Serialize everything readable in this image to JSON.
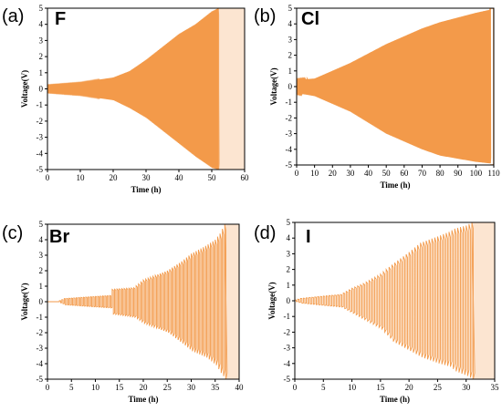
{
  "colors": {
    "series": "#f39a4a",
    "fill": "#f7b57a",
    "axis": "#000000"
  },
  "chart_data": [
    {
      "type": "line",
      "panel_label": "(a)",
      "title": "F",
      "xlabel": "Time (h)",
      "ylabel": "Voltage(V)",
      "xlim": [
        0,
        60
      ],
      "ylim": [
        -5,
        5
      ],
      "xticks": [
        0,
        10,
        20,
        30,
        40,
        50,
        60
      ],
      "yticks": [
        -5,
        -4,
        -3,
        -2,
        -1,
        0,
        1,
        2,
        3,
        4,
        5
      ],
      "cycle_period_h": 0.25,
      "envelope_x": [
        0,
        10,
        20,
        25,
        30,
        35,
        40,
        45,
        50,
        52
      ],
      "envelope_upper": [
        0.25,
        0.4,
        0.7,
        1.1,
        1.8,
        2.6,
        3.4,
        4.0,
        4.8,
        5
      ],
      "envelope_lower": [
        -0.25,
        -0.4,
        -0.7,
        -1.2,
        -1.8,
        -2.6,
        -3.4,
        -4.2,
        -4.9,
        -5
      ]
    },
    {
      "type": "line",
      "panel_label": "(b)",
      "title": "Cl",
      "xlabel": "Time (h)",
      "ylabel": "Voltage(V)",
      "xlim": [
        0,
        110
      ],
      "ylim": [
        -5,
        5
      ],
      "xticks": [
        0,
        10,
        20,
        30,
        40,
        50,
        60,
        70,
        80,
        90,
        100,
        110
      ],
      "yticks": [
        -5,
        -4,
        -3,
        -2,
        -1,
        0,
        1,
        2,
        3,
        4,
        5
      ],
      "cycle_period_h": 0.35,
      "envelope_x": [
        0,
        10,
        20,
        30,
        40,
        50,
        60,
        70,
        80,
        90,
        100,
        108
      ],
      "envelope_upper": [
        0.4,
        0.5,
        1.0,
        1.5,
        2.1,
        2.7,
        3.2,
        3.7,
        4.1,
        4.4,
        4.7,
        4.9
      ],
      "envelope_lower": [
        -0.4,
        -0.6,
        -1.1,
        -1.6,
        -2.3,
        -3.0,
        -3.5,
        -4.0,
        -4.4,
        -4.6,
        -4.8,
        -4.9
      ]
    },
    {
      "type": "line",
      "panel_label": "(c)",
      "title": "Br",
      "xlabel": "Time (h)",
      "ylabel": "Voltage(V)",
      "xlim": [
        0,
        40
      ],
      "ylim": [
        -5,
        5
      ],
      "xticks": [
        0,
        5,
        10,
        15,
        20,
        25,
        30,
        35,
        40
      ],
      "yticks": [
        -5,
        -4,
        -3,
        -2,
        -1,
        0,
        1,
        2,
        3,
        4,
        5
      ],
      "cycle_period_h": 0.5,
      "envelope_x": [
        0,
        2,
        3.5,
        8,
        13,
        13.5,
        18,
        20,
        25,
        28,
        30,
        33,
        35,
        36,
        37
      ],
      "envelope_upper": [
        0,
        0,
        0.2,
        0.3,
        0.4,
        0.8,
        0.9,
        1.4,
        2.0,
        2.6,
        3.1,
        3.6,
        4.0,
        4.4,
        5
      ],
      "envelope_lower": [
        0,
        0,
        -0.2,
        -0.3,
        -0.4,
        -0.8,
        -1.0,
        -1.4,
        -2.0,
        -2.7,
        -3.2,
        -3.6,
        -4.1,
        -4.6,
        -5
      ]
    },
    {
      "type": "line",
      "panel_label": "(d)",
      "title": "I",
      "xlabel": "Time (h)",
      "ylabel": "Voltage(V)",
      "xlim": [
        0,
        35
      ],
      "ylim": [
        -5,
        5
      ],
      "xticks": [
        0,
        5,
        10,
        15,
        20,
        25,
        30,
        35
      ],
      "yticks": [
        -5,
        -4,
        -3,
        -2,
        -1,
        0,
        1,
        2,
        3,
        4,
        5
      ],
      "cycle_period_h": 0.5,
      "envelope_x": [
        0,
        1,
        5,
        8,
        10,
        12,
        15,
        17,
        20,
        22,
        25,
        27,
        28,
        30,
        31
      ],
      "envelope_upper": [
        0.05,
        0.15,
        0.3,
        0.4,
        0.8,
        1.1,
        1.7,
        2.3,
        3.1,
        3.7,
        4.1,
        4.4,
        4.6,
        4.8,
        5
      ],
      "envelope_lower": [
        -0.05,
        -0.15,
        -0.3,
        -0.4,
        -0.8,
        -1.2,
        -1.8,
        -2.6,
        -3.2,
        -3.6,
        -4.0,
        -4.2,
        -4.5,
        -4.8,
        -5
      ]
    }
  ]
}
